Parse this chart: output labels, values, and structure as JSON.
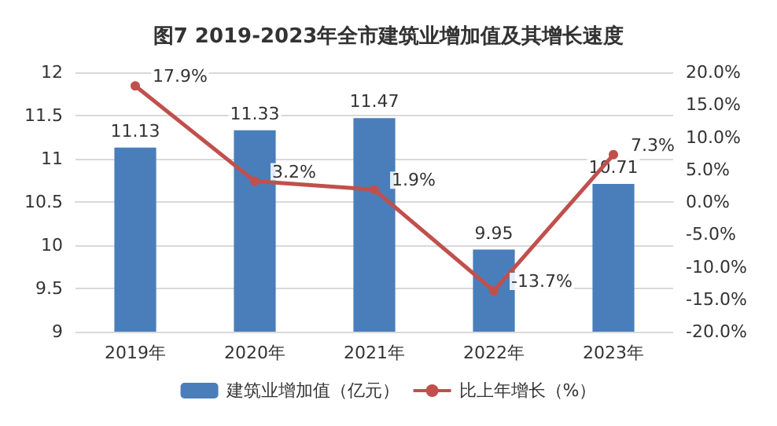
{
  "chart_data": {
    "type": "bar",
    "title": "图7 2019-2023年全市建筑业增加值及其增长速度",
    "categories": [
      "2019年",
      "2020年",
      "2021年",
      "2022年",
      "2023年"
    ],
    "series": [
      {
        "name": "建筑业增加值（亿元）",
        "color": "#4a7ebb",
        "values": [
          11.13,
          11.33,
          11.47,
          9.95,
          10.71
        ],
        "value_labels": [
          "11.13",
          "11.33",
          "11.47",
          "9.95",
          "10.71"
        ]
      },
      {
        "name": "比上年增长（%）",
        "type": "line",
        "axis": "y2",
        "color": "#c0504d",
        "marker": "circle",
        "values": [
          17.9,
          3.2,
          1.9,
          -13.7,
          7.3
        ],
        "value_labels": [
          "17.9%",
          "3.2%",
          "1.9%",
          "-13.7%",
          "7.3%"
        ]
      }
    ],
    "ylim": [
      9,
      12
    ],
    "yticks": [
      9,
      9.5,
      10,
      10.5,
      11,
      11.5,
      12
    ],
    "y2lim": [
      -20,
      20
    ],
    "y2ticks": [
      {
        "value": -20,
        "label": "-20.0%"
      },
      {
        "value": -15,
        "label": "-15.0%"
      },
      {
        "value": -10,
        "label": "-10.0%"
      },
      {
        "value": -5,
        "label": "-5.0%"
      },
      {
        "value": 0,
        "label": "0.0%"
      },
      {
        "value": 5,
        "label": "5.0%"
      },
      {
        "value": 10,
        "label": "10.0%"
      },
      {
        "value": 15,
        "label": "15.0%"
      },
      {
        "value": 20,
        "label": "20.0%"
      }
    ],
    "grid": "y",
    "legend": "bottom"
  }
}
